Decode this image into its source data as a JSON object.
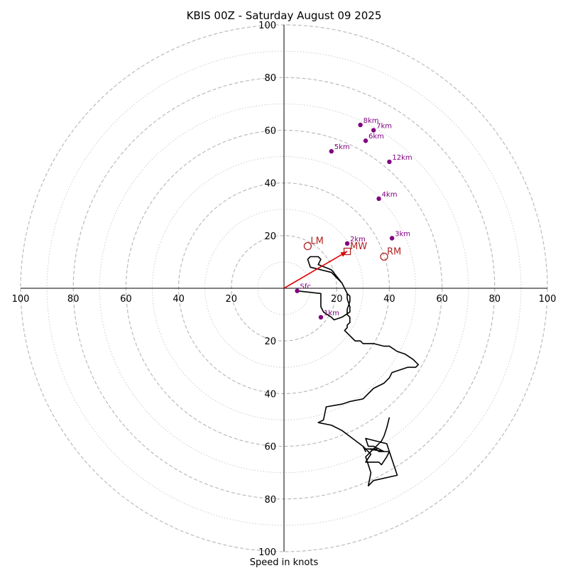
{
  "chart_data": {
    "type": "hodograph",
    "title": "KBIS 00Z - Saturday August 09 2025",
    "xlabel": "Speed in knots",
    "max_speed": 100,
    "ring_major_step": 20,
    "ring_minor_step": 10,
    "grid": true,
    "tick_values": [
      20,
      40,
      60,
      80,
      100
    ],
    "tick_labels": [
      "20",
      "40",
      "60",
      "80",
      "100"
    ],
    "colors": {
      "trace": "#000000",
      "height_markers": "#800080",
      "storm_motion": "#b22222",
      "mean_wind_arrow": "#e00000",
      "grid_major": "#bbbbbb",
      "grid_minor": "#cccccc"
    },
    "trace": {
      "u": [
        5,
        14,
        14,
        15,
        18,
        19,
        22,
        25,
        25,
        24,
        24,
        23,
        22,
        20,
        19,
        18,
        10,
        9,
        10,
        13,
        14,
        13,
        18,
        22,
        24,
        25,
        25,
        24,
        24,
        25,
        25,
        24,
        24,
        23,
        24,
        25,
        26,
        27,
        28,
        29,
        30,
        34,
        38,
        40,
        43,
        46,
        49,
        51,
        50,
        47,
        44,
        41,
        40,
        38,
        34,
        30,
        25,
        22,
        16,
        15,
        13,
        18,
        22,
        26,
        30,
        31,
        30,
        31,
        35,
        36,
        40,
        39,
        37,
        36,
        33,
        31,
        33,
        31,
        32,
        38,
        34,
        32,
        31,
        39,
        43,
        34,
        32,
        33,
        31,
        34,
        37,
        38,
        39,
        40
      ],
      "v": [
        -1,
        -2,
        -7,
        -9,
        -11,
        -12,
        -11,
        -9,
        -7,
        -4,
        -2,
        0,
        2,
        4,
        5,
        6,
        8,
        11,
        12,
        12,
        11,
        9,
        7,
        2,
        -2,
        -3,
        -5,
        -8,
        -10,
        -11,
        -13,
        -14,
        -15,
        -16,
        -17,
        -18,
        -19,
        -20,
        -20,
        -20,
        -21,
        -21,
        -22,
        -22,
        -24,
        -25,
        -27,
        -29,
        -30,
        -30,
        -31,
        -32,
        -34,
        -36,
        -38,
        -42,
        -43,
        -44,
        -45,
        -50,
        -51,
        -52,
        -54,
        -57,
        -60,
        -62,
        -60,
        -61,
        -61,
        -62,
        -62,
        -64,
        -67,
        -66,
        -66,
        -66,
        -63,
        -61,
        -61,
        -62,
        -60,
        -60,
        -57,
        -59,
        -71,
        -73,
        -75,
        -70,
        -64,
        -61,
        -58,
        -56,
        -53,
        -49
      ]
    },
    "height_markers": [
      {
        "label": "Sfc",
        "u": 5,
        "v": -1
      },
      {
        "label": "1km",
        "u": 14,
        "v": -11
      },
      {
        "label": "2km",
        "u": 24,
        "v": 17
      },
      {
        "label": "3km",
        "u": 41,
        "v": 19
      },
      {
        "label": "4km",
        "u": 36,
        "v": 34
      },
      {
        "label": "5km",
        "u": 18,
        "v": 52
      },
      {
        "label": "6km",
        "u": 31,
        "v": 56
      },
      {
        "label": "7km",
        "u": 34,
        "v": 60
      },
      {
        "label": "8km",
        "u": 29,
        "v": 62
      },
      {
        "label": "12km",
        "u": 40,
        "v": 48
      }
    ],
    "storm_motion": [
      {
        "label": "LM",
        "u": 9,
        "v": 16,
        "shape": "circle"
      },
      {
        "label": "RM",
        "u": 38,
        "v": 12,
        "shape": "circle"
      },
      {
        "label": "MW",
        "u": 24,
        "v": 14,
        "shape": "square"
      }
    ],
    "mean_wind_arrow": {
      "u_from": 0,
      "v_from": 0,
      "u_to": 24,
      "v_to": 14
    }
  }
}
